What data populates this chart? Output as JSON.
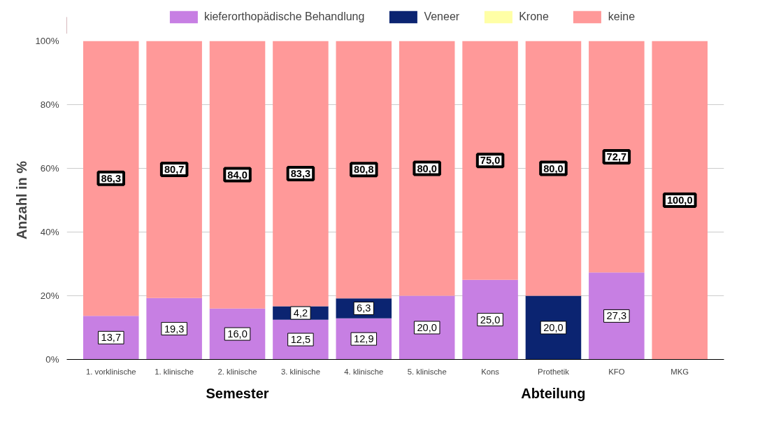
{
  "chart_data": {
    "type": "bar",
    "stacked": true,
    "ylabel": "Anzahl in %",
    "categories": [
      "1. vorklinische",
      "1. klinische",
      "2. klinische",
      "3. klinische",
      "4. klinische",
      "5. klinische",
      "Kons",
      "Prothetik",
      "KFO",
      "MKG"
    ],
    "series": [
      {
        "name": "kieferorthopädische Behandlung",
        "color": "#c77fe3",
        "values": [
          13.7,
          19.3,
          16.0,
          12.5,
          12.9,
          20.0,
          25.0,
          0,
          27.3,
          0
        ],
        "value_labels": [
          "13,7",
          "19,3",
          "16,0",
          "12,5",
          "12,9",
          "20,0",
          "25,0",
          null,
          "27,3",
          null
        ]
      },
      {
        "name": "Veneer",
        "color": "#0b2471",
        "values": [
          0,
          0,
          0,
          4.2,
          6.3,
          0,
          0,
          20.0,
          0,
          0
        ],
        "value_labels": [
          null,
          null,
          null,
          "4,2",
          "6,3",
          null,
          null,
          "20,0",
          null,
          null
        ]
      },
      {
        "name": "Krone",
        "color": "#ffffa6",
        "values": [
          0,
          0,
          0,
          0,
          0,
          0,
          0,
          0,
          0,
          0
        ]
      },
      {
        "name": "keine",
        "color": "#ff9999",
        "values": [
          86.3,
          80.7,
          84.0,
          83.3,
          80.8,
          80.0,
          75.0,
          80.0,
          72.7,
          100.0
        ],
        "value_labels": [
          "86,3",
          "80,7",
          "84,0",
          "83,3",
          "80,8",
          "80,0",
          "75,0",
          "80,0",
          "72,7",
          "100,0"
        ]
      }
    ],
    "ylim": [
      0,
      100
    ],
    "yticks": [
      {
        "value": 0,
        "label": "0%"
      },
      {
        "value": 20,
        "label": "20%"
      },
      {
        "value": 40,
        "label": "40%"
      },
      {
        "value": 60,
        "label": "60%"
      },
      {
        "value": 80,
        "label": "80%"
      },
      {
        "value": 100,
        "label": "100%"
      }
    ],
    "grid": "y",
    "legend": "top",
    "annotations": [
      "Semester",
      "Abteilung"
    ]
  }
}
